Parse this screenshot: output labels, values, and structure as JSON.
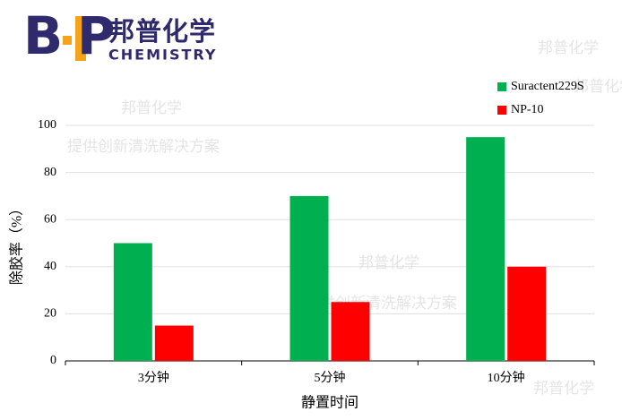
{
  "logo": {
    "left": "B",
    "right": "P",
    "name": "邦普化学",
    "english": "CHEMISTRY"
  },
  "watermarks": [
    "邦普化学",
    "邦普化学",
    "提供创新清洗解决方案",
    "邦普化学",
    "提供创新清洗解决方案",
    "邦普化学",
    "邦普化学"
  ],
  "chart_data": {
    "type": "bar",
    "categories": [
      "3分钟",
      "5分钟",
      "10分钟"
    ],
    "series": [
      {
        "name": "Suractent229S",
        "color": "#00b050",
        "values": [
          50,
          70,
          95
        ]
      },
      {
        "name": "NP-10",
        "color": "#ff0000",
        "values": [
          15,
          25,
          40
        ]
      }
    ],
    "xlabel": "静置时间",
    "ylabel": "除胶率（%）",
    "ylim": [
      0,
      100
    ],
    "yticks": [
      0,
      20,
      40,
      60,
      80,
      100
    ],
    "grid": true,
    "legend": "upper right"
  }
}
